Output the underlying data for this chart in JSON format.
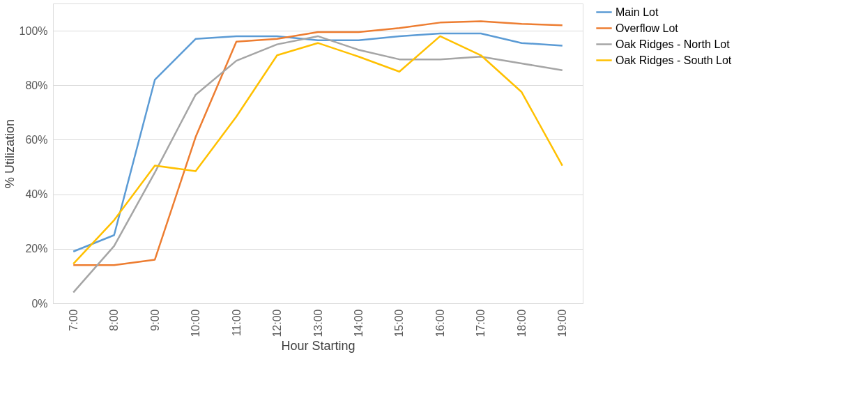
{
  "chart_data": {
    "type": "line",
    "xlabel": "Hour Starting",
    "ylabel": "% Utilization",
    "categories": [
      "7:00",
      "8:00",
      "9:00",
      "10:00",
      "11:00",
      "12:00",
      "13:00",
      "14:00",
      "15:00",
      "16:00",
      "17:00",
      "18:00",
      "19:00"
    ],
    "series": [
      {
        "name": "Main Lot",
        "color": "#5b9bd5",
        "values": [
          19,
          25,
          82,
          97,
          98,
          98,
          96.5,
          96.5,
          98,
          99,
          99,
          95.5,
          94.5
        ]
      },
      {
        "name": "Overflow Lot",
        "color": "#ed7d31",
        "values": [
          14,
          14,
          16,
          61,
          96,
          97,
          99.5,
          99.5,
          101,
          103,
          103.5,
          102.5,
          102
        ]
      },
      {
        "name": "Oak Ridges - North Lot",
        "color": "#a5a5a5",
        "values": [
          4,
          21,
          48,
          76.5,
          89,
          95,
          98,
          93,
          89.5,
          89.5,
          90.5,
          88,
          85.5
        ]
      },
      {
        "name": "Oak Ridges - South Lot",
        "color": "#ffc000",
        "values": [
          14.5,
          30.5,
          50.5,
          48.5,
          68.5,
          91,
          95.5,
          90.5,
          85,
          98,
          91,
          77.5,
          50.5
        ]
      }
    ],
    "ylim": [
      0,
      110
    ],
    "yticks": [
      {
        "value": 0,
        "label": "0%"
      },
      {
        "value": 20,
        "label": "20%"
      },
      {
        "value": 40,
        "label": "40%"
      },
      {
        "value": 60,
        "label": "60%"
      },
      {
        "value": 80,
        "label": "80%"
      },
      {
        "value": 100,
        "label": "100%"
      }
    ],
    "grid": "y",
    "legend": "right",
    "marker": "none",
    "line_style": "solid"
  }
}
